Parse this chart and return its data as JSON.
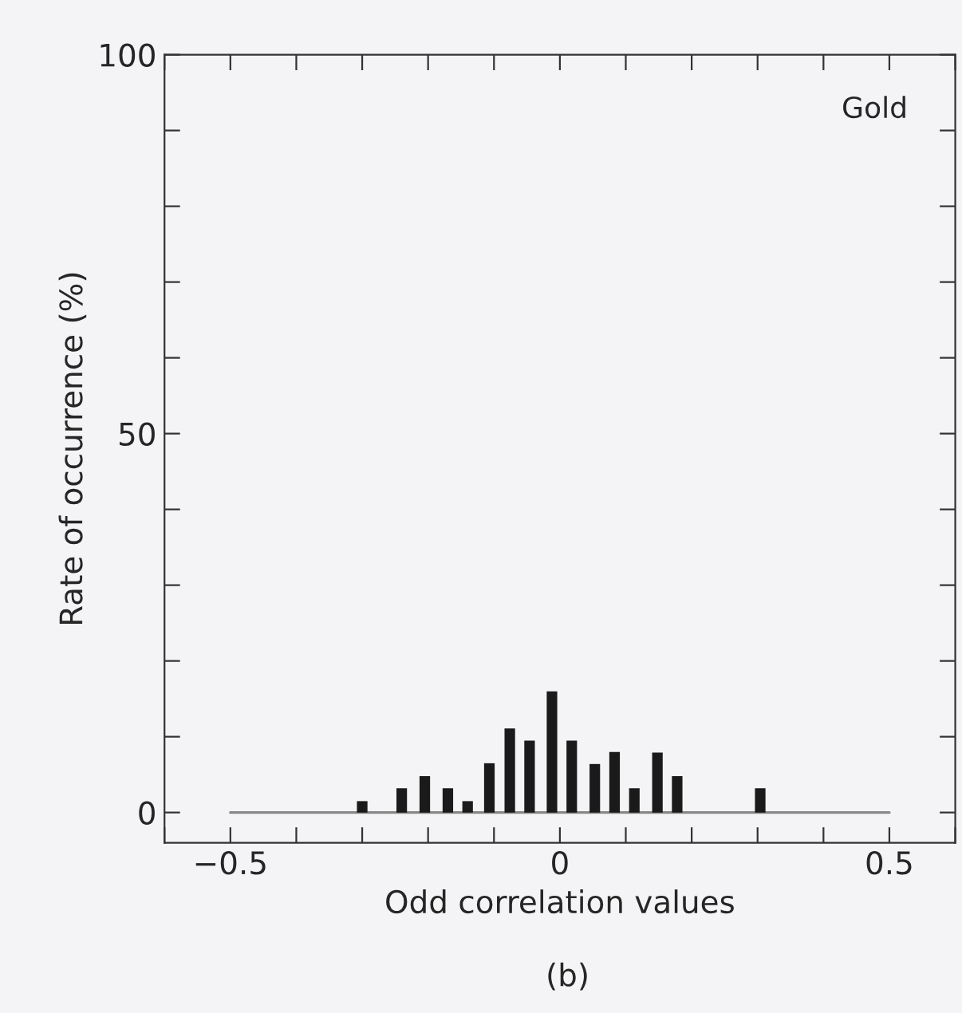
{
  "chart_data": {
    "type": "bar",
    "xlabel": "Odd correlation values",
    "ylabel": "Rate of occurrence (%)",
    "annotations": [
      "Gold",
      "(b)"
    ],
    "series": [
      {
        "type": "line",
        "color": "#888888",
        "x": [
          -0.5,
          0.5
        ],
        "values": [
          0,
          0
        ]
      },
      {
        "color": "#1a1a1a",
        "x": [
          -0.3,
          -0.24,
          -0.205,
          -0.17,
          -0.14,
          -0.107,
          -0.076,
          -0.046,
          -0.012,
          0.018,
          0.053,
          0.083,
          0.113,
          0.148,
          0.178,
          0.304
        ],
        "values": [
          1.5,
          3.2,
          4.8,
          3.2,
          1.5,
          6.5,
          11.1,
          9.5,
          16.0,
          9.5,
          6.4,
          8.0,
          3.2,
          7.9,
          4.8,
          3.2
        ]
      }
    ],
    "xlim": [
      -0.6,
      0.6
    ],
    "xticks": [
      {
        "value": -0.6,
        "label": null
      },
      -0.5,
      {
        "value": -0.4,
        "label": null
      },
      {
        "value": -0.3,
        "label": null
      },
      {
        "value": -0.2,
        "label": null
      },
      {
        "value": -0.1,
        "label": null
      },
      0,
      {
        "value": 0.1,
        "label": null
      },
      {
        "value": 0.2,
        "label": null
      },
      {
        "value": 0.3,
        "label": null
      },
      {
        "value": 0.4,
        "label": null
      },
      0.5,
      {
        "value": 0.6,
        "label": null
      }
    ],
    "ylim": [
      -4,
      100
    ],
    "yticks": [
      0,
      {
        "value": 10,
        "label": null
      },
      {
        "value": 20,
        "label": null
      },
      {
        "value": 30,
        "label": null
      },
      {
        "value": 40,
        "label": null
      },
      50,
      {
        "value": 60,
        "label": null
      },
      {
        "value": 70,
        "label": null
      },
      {
        "value": 80,
        "label": null
      },
      {
        "value": 90,
        "label": null
      },
      100
    ],
    "grid": false,
    "legend": false
  }
}
